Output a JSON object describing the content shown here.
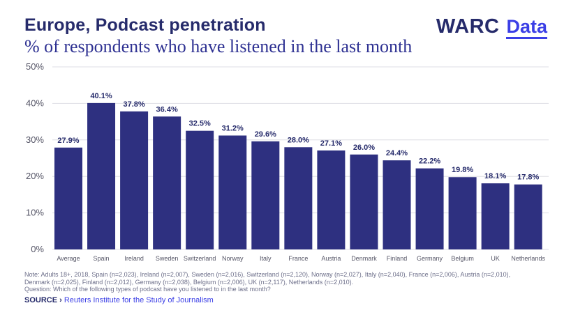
{
  "header": {
    "title": "Europe, Podcast penetration",
    "subtitle": "% of respondents who have listened in the last month",
    "logo_main": "WARC",
    "logo_sub": "Data"
  },
  "chart_data": {
    "type": "bar",
    "title": "Europe, Podcast penetration",
    "subtitle": "% of respondents who have listened in the last month",
    "xlabel": "",
    "ylabel": "",
    "ylim": [
      0,
      50
    ],
    "yticks": [
      0,
      10,
      20,
      30,
      40,
      50
    ],
    "ytick_labels": [
      "0%",
      "10%",
      "20%",
      "30%",
      "40%",
      "50%"
    ],
    "grid": true,
    "categories": [
      "Average",
      "Spain",
      "Ireland",
      "Sweden",
      "Switzerland",
      "Norway",
      "Italy",
      "France",
      "Austria",
      "Denmark",
      "Finland",
      "Germany",
      "Belgium",
      "UK",
      "Netherlands"
    ],
    "values": [
      27.9,
      40.1,
      37.8,
      36.4,
      32.5,
      31.2,
      29.6,
      28.0,
      27.1,
      26.0,
      24.4,
      22.2,
      19.8,
      18.1,
      17.8
    ],
    "value_labels": [
      "27.9%",
      "40.1%",
      "37.8%",
      "36.4%",
      "32.5%",
      "31.2%",
      "29.6%",
      "28.0%",
      "27.1%",
      "26.0%",
      "24.4%",
      "22.2%",
      "19.8%",
      "18.1%",
      "17.8%"
    ],
    "bar_color": "#2e3080",
    "label_color": "#262b6b",
    "axis_text_color": "#555566",
    "grid_color": "#dddde4"
  },
  "notes": {
    "line1": "Note: Adults 18+, 2018, Spain (n=2,023), Ireland (n=2,007), Sweden (n=2,016), Switzerland (n=2,120), Norway (n=2,027), Italy (n=2,040), France (n=2,006), Austria (n=2,010),",
    "line2": "Denmark (n=2,025), Finland (n=2,012), Germany (n=2,038), Belgium (n=2,006), UK (n=2,117), Netherlands (n=2,010).",
    "line3": "Question: Which of the following types of podcast have you listened to in the last month?"
  },
  "source": {
    "label": "SOURCE",
    "arrow": "›",
    "text": "Reuters Institute for the Study of Journalism"
  }
}
